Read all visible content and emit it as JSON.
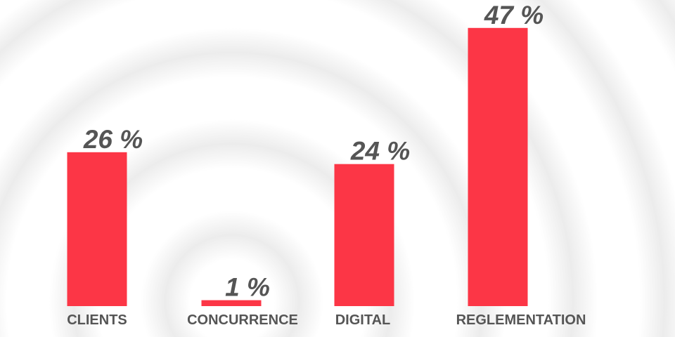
{
  "chart_data": {
    "type": "bar",
    "categories": [
      "CLIENTS",
      "CONCURRENCE",
      "DIGITAL",
      "REGLEMENTATION"
    ],
    "values": [
      26,
      1,
      24,
      47
    ],
    "value_labels": [
      "26 %",
      "1 %",
      "24 %",
      "47 %"
    ],
    "color": "#fc3646"
  }
}
